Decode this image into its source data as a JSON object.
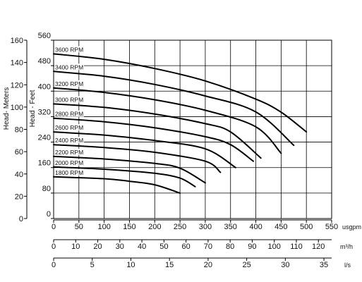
{
  "chart_data": {
    "type": "line",
    "title": "",
    "ylabel_left": "Head- Meters",
    "ylabel_inner": "Head - Feet",
    "ylim_feet": [
      0,
      560
    ],
    "ylim_meters": [
      0,
      160
    ],
    "head_feet_ticks": [
      "0",
      "80",
      "160",
      "240",
      "320",
      "400",
      "480",
      "560"
    ],
    "head_meter_ticks": [
      "0",
      "20",
      "40",
      "60",
      "80",
      "100",
      "120",
      "140",
      "160"
    ],
    "xlim_usgpm": [
      0,
      550
    ],
    "x_axes": [
      {
        "unit": "usgpm",
        "ticks": [
          "0",
          "50",
          "100",
          "150",
          "200",
          "250",
          "300",
          "350",
          "400",
          "450",
          "500",
          "550"
        ]
      },
      {
        "unit": "m³/h",
        "ticks": [
          "0",
          "10",
          "20",
          "30",
          "40",
          "50",
          "60",
          "70",
          "80",
          "90",
          "100",
          "110",
          "120"
        ]
      },
      {
        "unit": "l/s",
        "ticks": [
          "0",
          "5",
          "10",
          "15",
          "20",
          "25",
          "30",
          "35"
        ]
      }
    ],
    "grid": true,
    "x_unit": "usgpm",
    "y_unit": "feet",
    "series": [
      {
        "name": "3600 RPM",
        "x": [
          0,
          100,
          200,
          300,
          400,
          450,
          500
        ],
        "y": [
          517,
          500,
          471,
          432,
          375,
          334,
          272
        ]
      },
      {
        "name": "3400 RPM",
        "x": [
          0,
          100,
          200,
          300,
          400,
          475
        ],
        "y": [
          462,
          447,
          421,
          385,
          335,
          230
        ]
      },
      {
        "name": "3200 RPM",
        "x": [
          0,
          100,
          200,
          300,
          400,
          450
        ],
        "y": [
          410,
          396,
          373,
          340,
          288,
          205
        ]
      },
      {
        "name": "3000 RPM",
        "x": [
          0,
          100,
          200,
          300,
          350,
          410
        ],
        "y": [
          360,
          349,
          328,
          298,
          272,
          190
        ]
      },
      {
        "name": "2800 RPM",
        "x": [
          0,
          100,
          200,
          300,
          350,
          395
        ],
        "y": [
          315,
          304,
          285,
          257,
          232,
          180
        ]
      },
      {
        "name": "2600 RPM",
        "x": [
          0,
          100,
          200,
          300,
          360
        ],
        "y": [
          272,
          262,
          245,
          219,
          160
        ]
      },
      {
        "name": "2400 RPM",
        "x": [
          0,
          100,
          200,
          300,
          330
        ],
        "y": [
          232,
          223,
          208,
          180,
          145
        ]
      },
      {
        "name": "2200 RPM",
        "x": [
          0,
          100,
          200,
          250,
          300
        ],
        "y": [
          195,
          187,
          173,
          158,
          112
        ]
      },
      {
        "name": "2000 RPM",
        "x": [
          0,
          100,
          200,
          250,
          280
        ],
        "y": [
          162,
          155,
          142,
          127,
          100
        ]
      },
      {
        "name": "1800 RPM",
        "x": [
          0,
          100,
          150,
          200,
          250
        ],
        "y": [
          131,
          125,
          117,
          106,
          80
        ]
      }
    ]
  }
}
